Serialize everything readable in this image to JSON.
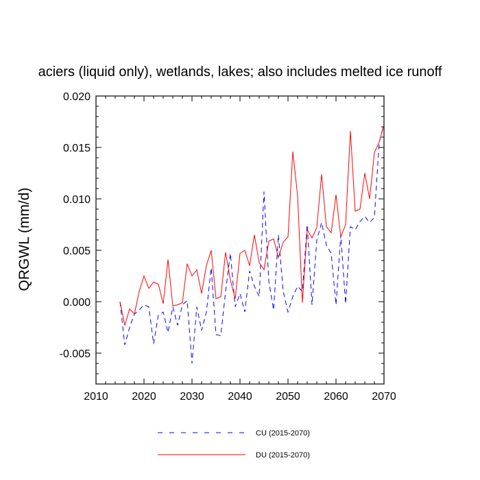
{
  "chart_data": {
    "type": "line",
    "title": "aciers (liquid only), wetlands, lakes; also includes melted ice runoff",
    "xlabel": "",
    "ylabel": "QRGWL  (mm/d)",
    "xlim": [
      2010,
      2070
    ],
    "ylim": [
      -0.008,
      0.02
    ],
    "x_ticks": [
      2010,
      2020,
      2030,
      2040,
      2050,
      2060,
      2070
    ],
    "x_tick_labels": [
      "2010",
      "2020",
      "2030",
      "2040",
      "2050",
      "2060",
      "2070"
    ],
    "y_ticks": [
      -0.005,
      0.0,
      0.005,
      0.01,
      0.015,
      0.02
    ],
    "y_tick_labels": [
      "-0.005",
      "0.000",
      "0.005",
      "0.010",
      "0.015",
      "0.020"
    ],
    "grid": false,
    "legend_position": "bottom-center",
    "x": [
      2015,
      2016,
      2017,
      2018,
      2019,
      2020,
      2021,
      2022,
      2023,
      2024,
      2025,
      2026,
      2027,
      2028,
      2029,
      2030,
      2031,
      2032,
      2033,
      2034,
      2035,
      2036,
      2037,
      2038,
      2039,
      2040,
      2041,
      2042,
      2043,
      2044,
      2045,
      2046,
      2047,
      2048,
      2049,
      2050,
      2051,
      2052,
      2053,
      2054,
      2055,
      2056,
      2057,
      2058,
      2059,
      2060,
      2061,
      2062,
      2063,
      2064,
      2065,
      2066,
      2067,
      2068,
      2069,
      2070
    ],
    "series": [
      {
        "name": "CU (2015-2070)",
        "color": "#0000ff",
        "dash": "dashed",
        "values": [
          0.0,
          -0.0042,
          -0.0025,
          -0.0012,
          -0.0008,
          -0.0003,
          -0.0005,
          -0.0041,
          -0.0013,
          -0.001,
          -0.003,
          -0.0005,
          -0.0023,
          -0.0003,
          0.0001,
          -0.006,
          -0.0005,
          -0.0028,
          -0.001,
          0.0033,
          -0.0032,
          -0.0033,
          0.001,
          0.0047,
          -0.0005,
          0.0008,
          -0.001,
          0.003,
          0.0015,
          0.0005,
          0.0107,
          0.002,
          -0.0008,
          0.0065,
          0.001,
          -0.001,
          0.0005,
          0.0015,
          0.001,
          0.0075,
          -0.0003,
          0.006,
          0.0077,
          0.0055,
          0.0047,
          -0.0003,
          0.0065,
          -0.0002,
          0.0073,
          0.007,
          0.0078,
          0.0083,
          0.0077,
          0.0082,
          0.0155,
          0.0173
        ]
      },
      {
        "name": "DU (2015-2070)",
        "color": "#ff0000",
        "dash": "solid",
        "values": [
          0.0,
          -0.0023,
          -0.0007,
          -0.0012,
          0.001,
          0.0025,
          0.0013,
          0.0019,
          0.0017,
          -0.0002,
          0.0041,
          -0.0004,
          -0.0003,
          -0.0001,
          0.0037,
          0.0025,
          0.0031,
          0.0008,
          0.0035,
          0.005,
          0.0003,
          0.0005,
          0.0048,
          0.0021,
          0.0003,
          0.0047,
          0.005,
          0.0035,
          0.0065,
          0.0038,
          0.0031,
          0.0059,
          0.0061,
          0.0043,
          0.0058,
          0.0063,
          0.0146,
          0.0103,
          -0.0001,
          0.007,
          0.0062,
          0.0072,
          0.0124,
          0.0073,
          0.0067,
          0.0104,
          0.0063,
          0.0075,
          0.0166,
          0.0088,
          0.009,
          0.0125,
          0.01,
          0.0145,
          0.0155,
          0.0172
        ]
      }
    ]
  }
}
